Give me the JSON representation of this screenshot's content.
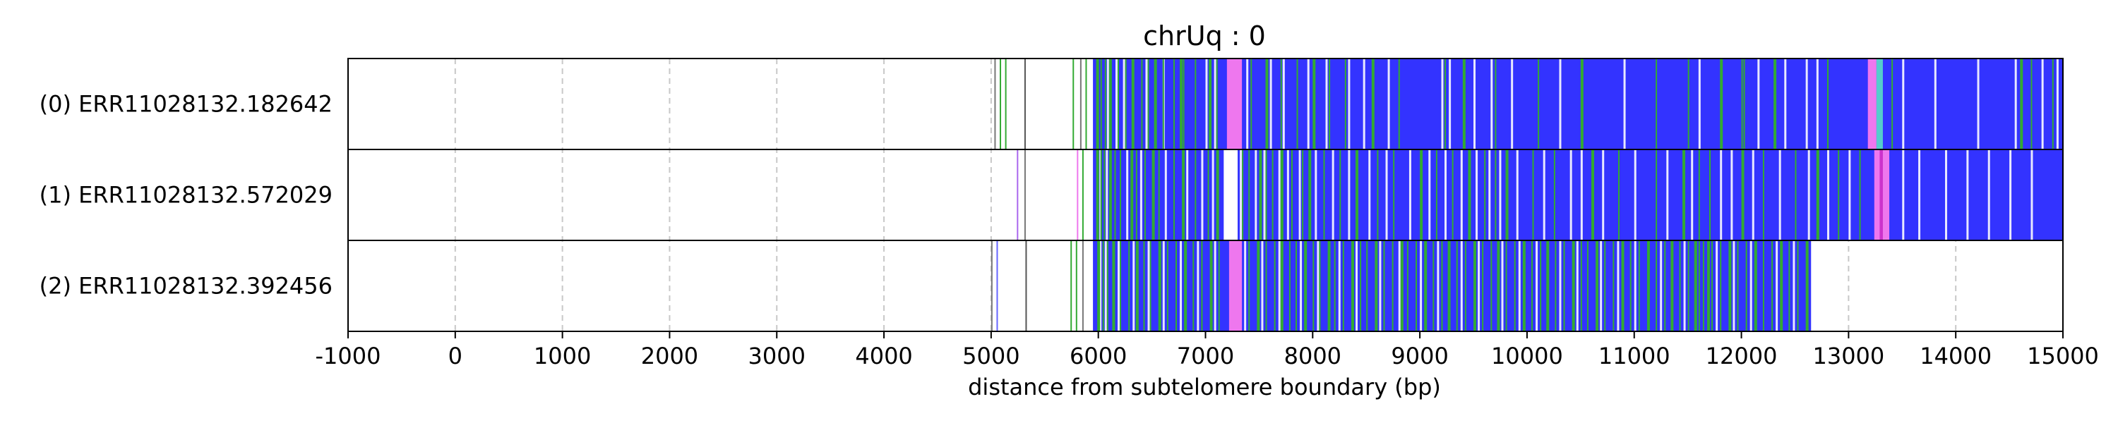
{
  "chart_data": {
    "type": "heatmap",
    "title": "chrUq : 0",
    "xlabel": "distance from subtelomere boundary (bp)",
    "ylabel": "",
    "xlim": [
      -1000,
      15000
    ],
    "xticks": [
      -1000,
      0,
      1000,
      2000,
      3000,
      4000,
      5000,
      6000,
      7000,
      8000,
      9000,
      10000,
      11000,
      12000,
      13000,
      14000,
      15000
    ],
    "xtick_labels": [
      "-1000",
      "0",
      "1000",
      "2000",
      "3000",
      "4000",
      "5000",
      "6000",
      "7000",
      "8000",
      "9000",
      "10000",
      "11000",
      "12000",
      "13000",
      "14000",
      "15000"
    ],
    "grid": "vertical dashed at x ticks",
    "colors": {
      "fill": "#3333ff",
      "green": "#33aa33",
      "magenta": "#ee77ee",
      "cyan": "#55cccc",
      "thin_grey": "#777777",
      "thin_violet": "#aa66ee",
      "gap": "#ffffff"
    },
    "rows": [
      {
        "label": "(0) ERR11028132.182642",
        "start": 5950,
        "end": 15000,
        "blocks": [
          [
            7200,
            7340,
            "#ee77ee"
          ],
          [
            13180,
            13260,
            "#ee77ee"
          ],
          [
            13260,
            13320,
            "#55cccc"
          ]
        ],
        "sparse_lines": [
          [
            5030,
            "#777777"
          ],
          [
            5080,
            "#33aa33"
          ],
          [
            5130,
            "#33aa33"
          ],
          [
            5310,
            "#555555"
          ],
          [
            5760,
            "#33aa33"
          ],
          [
            5830,
            "#777777"
          ],
          [
            5880,
            "#33aa33"
          ]
        ],
        "green_positions": [
          5980,
          6020,
          6060,
          6100,
          6180,
          6250,
          6310,
          6400,
          6460,
          6520,
          6600,
          6700,
          6760,
          6790,
          6900,
          7030,
          7100,
          7420,
          7560,
          7700,
          7850,
          8000,
          8150,
          8300,
          8550,
          8800,
          9230,
          9400,
          9700,
          10100,
          10500,
          11200,
          11500,
          11800,
          12000,
          12020,
          12300,
          12800,
          13400,
          14600,
          14700,
          14900
        ],
        "gap_positions": [
          6080,
          6160,
          6230,
          6440,
          6600,
          7000,
          7080,
          7380,
          7600,
          7720,
          7950,
          8120,
          8330,
          8470,
          8700,
          9200,
          9270,
          9500,
          9660,
          9850,
          10300,
          10900,
          11600,
          12150,
          12400,
          12600,
          12700,
          13500,
          13800,
          14200,
          14550,
          14800,
          14940
        ]
      },
      {
        "label": "(1) ERR11028132.572029",
        "start": 5950,
        "end": 15000,
        "blocks": [
          [
            7170,
            7300,
            "#ffffff"
          ],
          [
            13240,
            13380,
            "#ee77ee"
          ],
          [
            13290,
            13320,
            "#cc33cc"
          ]
        ],
        "sparse_lines": [
          [
            5800,
            "#ee77ee"
          ],
          [
            5240,
            "#aa66ee"
          ],
          [
            5310,
            "#777777"
          ],
          [
            5850,
            "#33aa33"
          ]
        ],
        "green_positions": [
          5980,
          6020,
          6050,
          6100,
          6150,
          6200,
          6300,
          6350,
          6430,
          6500,
          6560,
          6700,
          6780,
          6900,
          7020,
          7100,
          7340,
          7400,
          7500,
          7560,
          7620,
          7700,
          7800,
          7900,
          7960,
          8100,
          8250,
          8400,
          8600,
          8750,
          9000,
          9150,
          9300,
          9450,
          9600,
          9700,
          9800,
          10050,
          10250,
          10600,
          10850,
          11200,
          11450,
          11600,
          11700,
          12000,
          12200,
          12500,
          12700,
          12900,
          13100
        ],
        "gap_positions": [
          6010,
          6070,
          6260,
          6390,
          6620,
          6820,
          6960,
          7060,
          7320,
          7460,
          7540,
          7680,
          7760,
          7870,
          8020,
          8180,
          8330,
          8520,
          8680,
          8900,
          9080,
          9230,
          9380,
          9520,
          9640,
          9740,
          9900,
          10150,
          10400,
          10500,
          10700,
          11000,
          11300,
          11530,
          11800,
          11900,
          12100,
          12350,
          12620,
          12800,
          13000,
          13500,
          13650,
          13900,
          14100,
          14300,
          14500,
          14700
        ]
      },
      {
        "label": "(2) ERR11028132.392456",
        "start": 5950,
        "end": 12650,
        "blocks": [
          [
            7220,
            7340,
            "#ee77ee"
          ]
        ],
        "sparse_lines": [
          [
            5000,
            "#777777"
          ],
          [
            5050,
            "#6666ff"
          ],
          [
            5320,
            "#555555"
          ],
          [
            5740,
            "#33aa33"
          ],
          [
            5790,
            "#33aa33"
          ],
          [
            5850,
            "#777777"
          ]
        ],
        "green_positions": [
          5990,
          6040,
          6080,
          6130,
          6200,
          6280,
          6350,
          6420,
          6480,
          6560,
          6640,
          6720,
          6800,
          6880,
          6960,
          7040,
          7120,
          7400,
          7480,
          7560,
          7640,
          7700,
          7780,
          7840,
          7920,
          8000,
          8060,
          8140,
          8200,
          8280,
          8360,
          8440,
          8500,
          8580,
          8660,
          8740,
          8820,
          8880,
          8960,
          9040,
          9120,
          9200,
          9260,
          9340,
          9420,
          9500,
          9580,
          9660,
          9720,
          9800,
          9880,
          9960,
          10040,
          10120,
          10180,
          10260,
          10340,
          10420,
          10500,
          10560,
          10640,
          10720,
          10800,
          10880,
          10960,
          11040,
          11120,
          11200,
          11280,
          11340,
          11420,
          11500,
          11560,
          11600,
          11640,
          11680,
          11720,
          11800,
          11880,
          11960,
          12040,
          12120,
          12200,
          12280,
          12360,
          12440,
          12520,
          12600
        ],
        "gap_positions": [
          6010,
          6060,
          6180,
          6320,
          6460,
          6600,
          6760,
          6920,
          7080,
          7360,
          7520,
          7680,
          7880,
          8040,
          8240,
          8400,
          8620,
          8800,
          9000,
          9160,
          9380,
          9540,
          9760,
          9920,
          10080,
          10300,
          10460,
          10680,
          10840,
          11000,
          11240,
          11460,
          11760,
          11920,
          12080,
          12320,
          12480
        ]
      }
    ]
  }
}
